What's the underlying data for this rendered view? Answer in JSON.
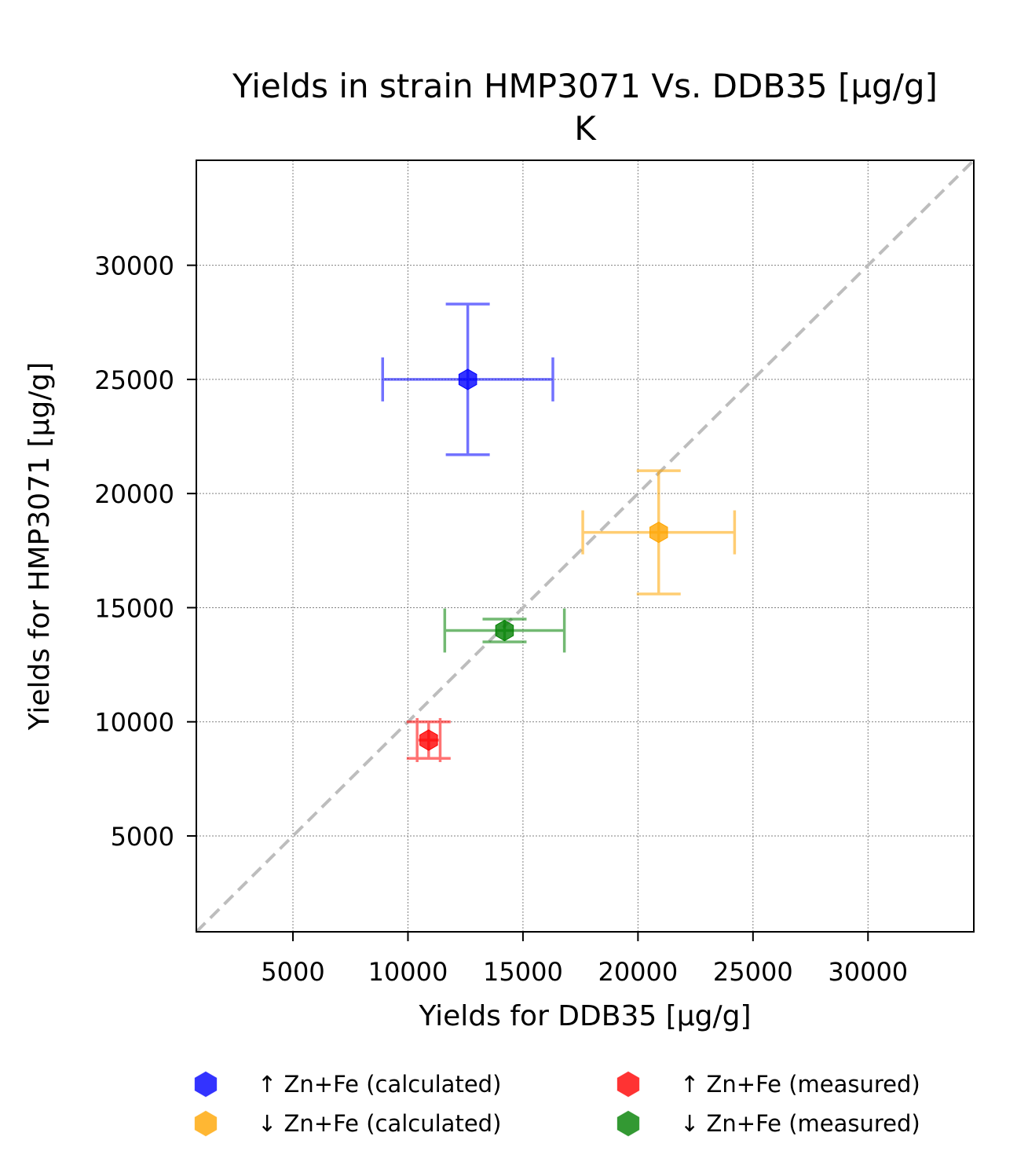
{
  "chart_data": {
    "type": "scatter",
    "title": "Yields in strain HMP3071 Vs. DDB35 [µg/g]",
    "subtitle": "K",
    "xlabel": "Yields for DDB35 [µg/g]",
    "ylabel": "Yields for HMP3071 [µg/g]",
    "xlim": [
      800,
      34600
    ],
    "ylim": [
      800,
      34600
    ],
    "xticks": [
      5000,
      10000,
      15000,
      20000,
      25000,
      30000
    ],
    "yticks": [
      5000,
      10000,
      15000,
      20000,
      25000,
      30000
    ],
    "grid": true,
    "reference_line": "y = x",
    "legend_position": "bottom",
    "series": [
      {
        "name": "↑ Zn+Fe (calculated)",
        "color": "#0000ff",
        "x": 12600,
        "y": 25000,
        "xerr": 3700,
        "yerr": 3300
      },
      {
        "name": "↓ Zn+Fe (calculated)",
        "color": "#ffa500",
        "x": 20900,
        "y": 18300,
        "xerr": 3300,
        "yerr": 2700
      },
      {
        "name": "↑ Zn+Fe (measured)",
        "color": "#ff0000",
        "x": 10900,
        "y": 9200,
        "xerr": 500,
        "yerr": 800
      },
      {
        "name": "↓ Zn+Fe (measured)",
        "color": "#008000",
        "x": 14200,
        "y": 14000,
        "xerr": 2600,
        "yerr": 500
      }
    ]
  }
}
